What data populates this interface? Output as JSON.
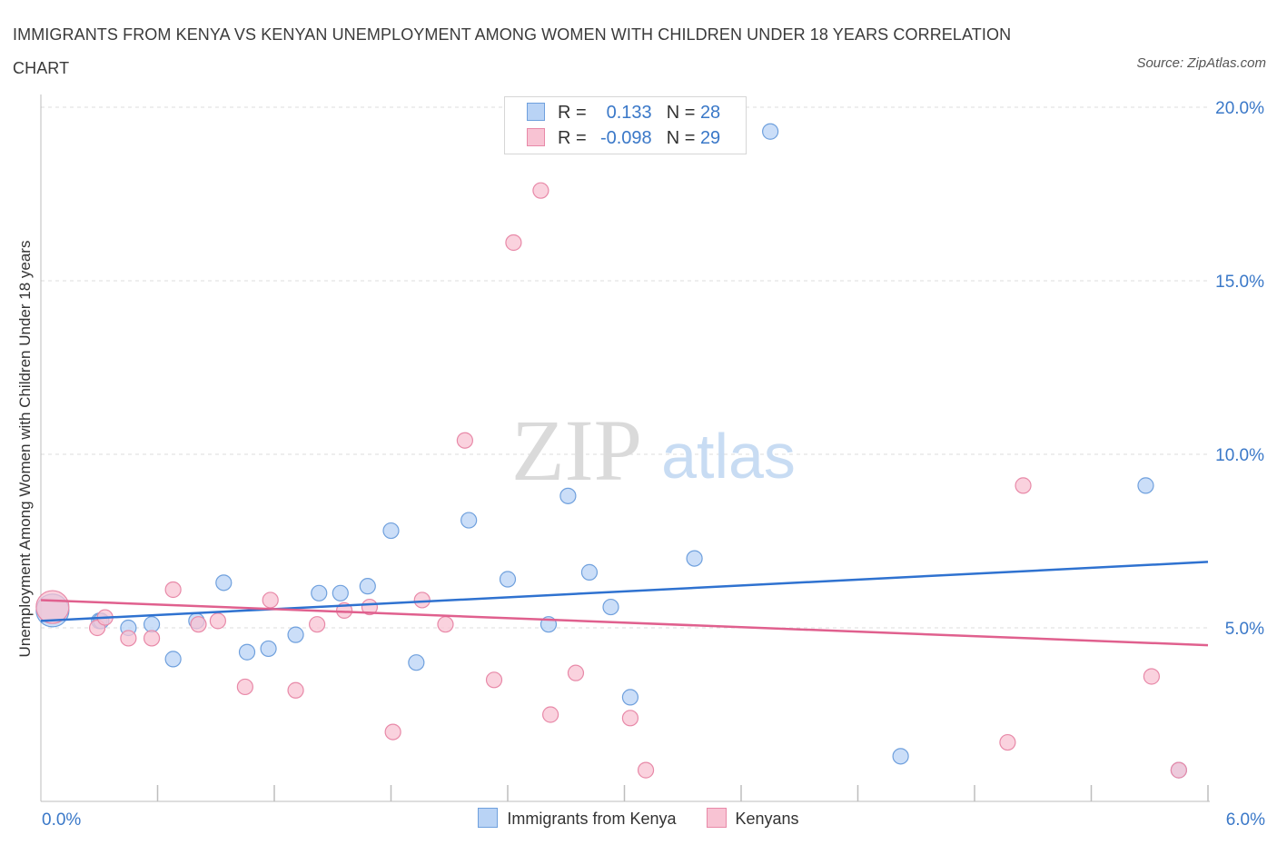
{
  "header": {
    "title": "IMMIGRANTS FROM KENYA VS KENYAN UNEMPLOYMENT AMONG WOMEN WITH CHILDREN UNDER 18 YEARS CORRELATION CHART",
    "source": "Source: ZipAtlas.com"
  },
  "watermark": {
    "zip": "ZIP",
    "atlas": "atlas"
  },
  "legend": {
    "r_label": "R =",
    "n_label": "N =",
    "rows": [
      {
        "r": "0.133",
        "n": "28",
        "color": "#b9d3f5"
      },
      {
        "r": "-0.098",
        "n": "29",
        "color": "#f8c3d3"
      }
    ]
  },
  "bottom_legend": [
    "Immigrants from Kenya",
    "Kenyans"
  ],
  "chart_data": {
    "type": "scatter",
    "title": "IMMIGRANTS FROM KENYA VS KENYAN UNEMPLOYMENT AMONG WOMEN WITH CHILDREN UNDER 18 YEARS CORRELATION CHART",
    "xlabel": "",
    "ylabel": "Unemployment Among Women with Children Under 18 years",
    "xlim": [
      0,
      6
    ],
    "ylim": [
      0,
      20
    ],
    "x_tick_labels": [
      "0.0%",
      "6.0%"
    ],
    "y_ticks": [
      5,
      10,
      15,
      20
    ],
    "y_tick_labels": [
      "5.0%",
      "10.0%",
      "15.0%",
      "20.0%"
    ],
    "grid": true,
    "legend_position": "top-center",
    "series": [
      {
        "name": "Immigrants from Kenya",
        "color": "#6fa0dd",
        "fill": "#b9d3f5",
        "r": "0.133",
        "n": "28",
        "trend": {
          "x": [
            0,
            6
          ],
          "y": [
            5.2,
            6.9
          ]
        },
        "points": [
          {
            "x": 0.06,
            "y": 5.5,
            "big": true
          },
          {
            "x": 0.3,
            "y": 5.2
          },
          {
            "x": 0.31,
            "y": 5.2
          },
          {
            "x": 0.45,
            "y": 5.0
          },
          {
            "x": 0.57,
            "y": 5.1
          },
          {
            "x": 0.68,
            "y": 4.1
          },
          {
            "x": 0.8,
            "y": 5.2
          },
          {
            "x": 0.94,
            "y": 6.3
          },
          {
            "x": 1.06,
            "y": 4.3
          },
          {
            "x": 1.17,
            "y": 4.4
          },
          {
            "x": 1.31,
            "y": 4.8
          },
          {
            "x": 1.43,
            "y": 6.0
          },
          {
            "x": 1.54,
            "y": 6.0
          },
          {
            "x": 1.68,
            "y": 6.2
          },
          {
            "x": 1.8,
            "y": 7.8
          },
          {
            "x": 1.93,
            "y": 4.0
          },
          {
            "x": 2.2,
            "y": 8.1
          },
          {
            "x": 2.4,
            "y": 6.4
          },
          {
            "x": 2.61,
            "y": 5.1
          },
          {
            "x": 2.71,
            "y": 8.8
          },
          {
            "x": 2.82,
            "y": 6.6
          },
          {
            "x": 2.93,
            "y": 5.6
          },
          {
            "x": 3.03,
            "y": 3.0
          },
          {
            "x": 3.36,
            "y": 7.0
          },
          {
            "x": 3.75,
            "y": 19.3
          },
          {
            "x": 4.42,
            "y": 1.3
          },
          {
            "x": 5.68,
            "y": 9.1
          },
          {
            "x": 5.85,
            "y": 0.9
          }
        ]
      },
      {
        "name": "Kenyans",
        "color": "#e889a8",
        "fill": "#f8c3d3",
        "r": "-0.098",
        "n": "29",
        "trend": {
          "x": [
            0,
            6
          ],
          "y": [
            5.8,
            4.5
          ]
        },
        "points": [
          {
            "x": 0.06,
            "y": 5.6,
            "big": true
          },
          {
            "x": 0.29,
            "y": 5.0
          },
          {
            "x": 0.33,
            "y": 5.3
          },
          {
            "x": 0.45,
            "y": 4.7
          },
          {
            "x": 0.57,
            "y": 4.7
          },
          {
            "x": 0.68,
            "y": 6.1
          },
          {
            "x": 0.81,
            "y": 5.1
          },
          {
            "x": 0.91,
            "y": 5.2
          },
          {
            "x": 1.05,
            "y": 3.3
          },
          {
            "x": 1.18,
            "y": 5.8
          },
          {
            "x": 1.31,
            "y": 3.2
          },
          {
            "x": 1.42,
            "y": 5.1
          },
          {
            "x": 1.56,
            "y": 5.5
          },
          {
            "x": 1.69,
            "y": 5.6
          },
          {
            "x": 1.81,
            "y": 2.0
          },
          {
            "x": 1.96,
            "y": 5.8
          },
          {
            "x": 2.08,
            "y": 5.1
          },
          {
            "x": 2.18,
            "y": 10.4
          },
          {
            "x": 2.33,
            "y": 3.5
          },
          {
            "x": 2.43,
            "y": 16.1
          },
          {
            "x": 2.57,
            "y": 17.6
          },
          {
            "x": 2.62,
            "y": 2.5
          },
          {
            "x": 2.75,
            "y": 3.7
          },
          {
            "x": 3.03,
            "y": 2.4
          },
          {
            "x": 3.11,
            "y": 0.9
          },
          {
            "x": 5.05,
            "y": 9.1
          },
          {
            "x": 4.97,
            "y": 1.7
          },
          {
            "x": 5.71,
            "y": 3.6
          },
          {
            "x": 5.85,
            "y": 0.9
          }
        ]
      }
    ]
  }
}
